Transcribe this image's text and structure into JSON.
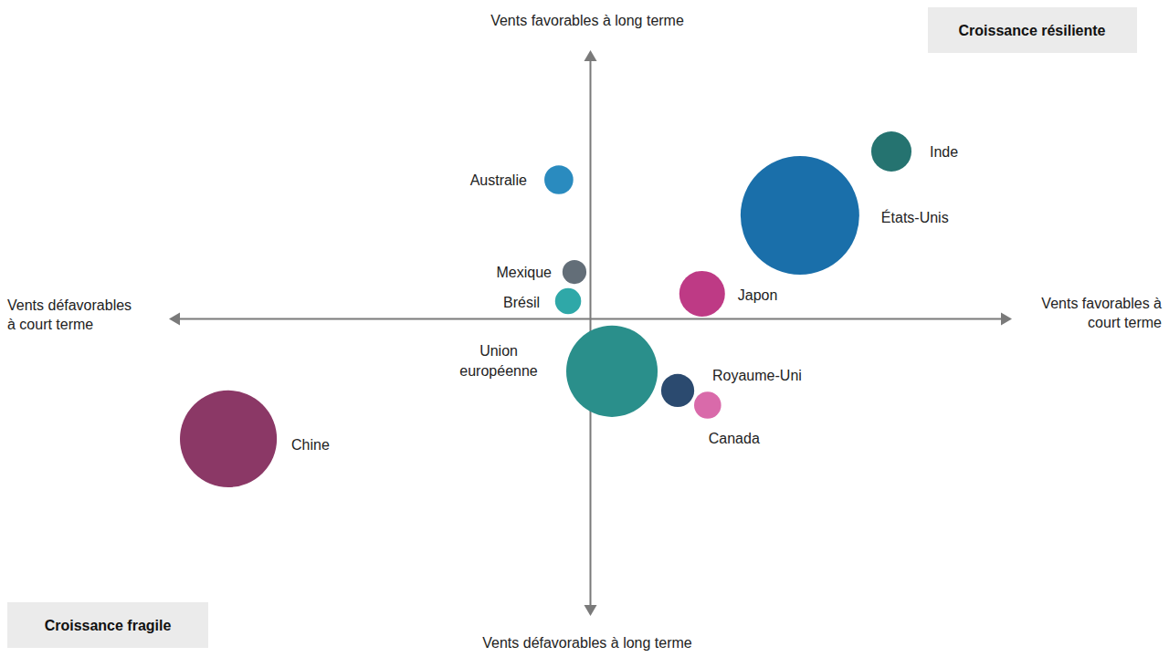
{
  "chart_data": {
    "type": "bubble",
    "ylabel_top": "Vents favorables à long terme",
    "ylabel_bottom": "Vents défavorables à long terme",
    "xlabel_left": [
      "Vents défavorables",
      "à court terme"
    ],
    "xlabel_right": [
      "Vents favorables à",
      "court terme"
    ],
    "quadrant_labels": {
      "top_right": "Croissance résiliente",
      "bottom_left": "Croissance fragile"
    },
    "labels": [
      "Inde",
      "États-Unis",
      "Australie",
      "Mexique",
      "Brésil",
      "Japon",
      "Union européenne",
      "Royaume-Uni",
      "Canada",
      "Chine"
    ],
    "x": [
      7.14,
      4.97,
      -0.75,
      -0.38,
      -0.53,
      2.65,
      0.51,
      2.07,
      2.78,
      -8.59
    ],
    "values": [
      5.92,
      3.66,
      4.92,
      1.66,
      0.63,
      0.89,
      -1.85,
      -2.53,
      -3.05,
      -4.24
    ],
    "sizes": [
      3.1,
      27,
      1.6,
      1.1,
      1.3,
      4.0,
      16,
      2.1,
      1.4,
      18
    ],
    "colors": [
      "#257370",
      "#1a6faa",
      "#2a8bbf",
      "#636e78",
      "#2fa8a8",
      "#be3a85",
      "#2a8f8b",
      "#2b4a6f",
      "#d96aaa",
      "#8b3866"
    ],
    "xlim": [
      -10,
      10
    ],
    "ylim": [
      -10.5,
      9.5
    ],
    "xticks": [
      0
    ],
    "yticks": [
      0
    ],
    "tick_labels": false,
    "grid": false
  }
}
